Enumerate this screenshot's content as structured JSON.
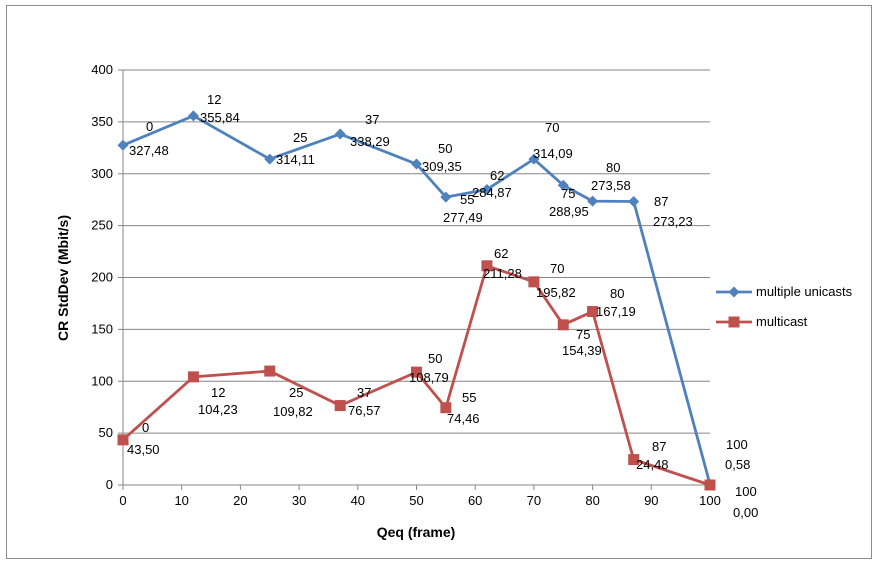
{
  "chart_data": {
    "type": "line",
    "title": "",
    "xlabel": "Qeq (frame)",
    "ylabel": "CR StdDev (Mbit/s)",
    "xlim": [
      0,
      100
    ],
    "ylim": [
      0,
      400
    ],
    "xticks": [
      "0",
      "10",
      "20",
      "30",
      "40",
      "50",
      "60",
      "70",
      "80",
      "90",
      "100"
    ],
    "yticks": [
      "0",
      "50",
      "100",
      "150",
      "200",
      "250",
      "300",
      "350",
      "400"
    ],
    "grid": "horizontal",
    "legend_position": "right",
    "series": [
      {
        "name": "multiple unicasts",
        "color": "#4f81bd",
        "marker": "diamond",
        "points": [
          {
            "x": 0,
            "y": 327.48,
            "label_x": "0",
            "label_y": "327,48"
          },
          {
            "x": 12,
            "y": 355.84,
            "label_x": "12",
            "label_y": "355,84"
          },
          {
            "x": 25,
            "y": 314.11,
            "label_x": "25",
            "label_y": "314,11"
          },
          {
            "x": 37,
            "y": 338.29,
            "label_x": "37",
            "label_y": "338,29"
          },
          {
            "x": 50,
            "y": 309.35,
            "label_x": "50",
            "label_y": "309,35"
          },
          {
            "x": 55,
            "y": 277.49,
            "label_x": "55",
            "label_y": "277,49"
          },
          {
            "x": 62,
            "y": 284.87,
            "label_x": "62",
            "label_y": "284,87"
          },
          {
            "x": 70,
            "y": 314.09,
            "label_x": "70",
            "label_y": "314,09"
          },
          {
            "x": 75,
            "y": 288.95,
            "label_x": "75",
            "label_y": "288,95"
          },
          {
            "x": 80,
            "y": 273.58,
            "label_x": "80",
            "label_y": "273,58"
          },
          {
            "x": 87,
            "y": 273.23,
            "label_x": "87",
            "label_y": "273,23"
          },
          {
            "x": 100,
            "y": 0.58,
            "label_x": "100",
            "label_y": "0,58"
          }
        ]
      },
      {
        "name": "multicast",
        "color": "#c0504d",
        "marker": "square",
        "points": [
          {
            "x": 0,
            "y": 43.5,
            "label_x": "0",
            "label_y": "43,50"
          },
          {
            "x": 12,
            "y": 104.23,
            "label_x": "12",
            "label_y": "104,23"
          },
          {
            "x": 25,
            "y": 109.82,
            "label_x": "25",
            "label_y": "109,82"
          },
          {
            "x": 37,
            "y": 76.57,
            "label_x": "37",
            "label_y": "76,57"
          },
          {
            "x": 50,
            "y": 108.79,
            "label_x": "50",
            "label_y": "108,79"
          },
          {
            "x": 55,
            "y": 74.46,
            "label_x": "55",
            "label_y": "74,46"
          },
          {
            "x": 62,
            "y": 211.28,
            "label_x": "62",
            "label_y": "211,28"
          },
          {
            "x": 70,
            "y": 195.82,
            "label_x": "70",
            "label_y": "195,82"
          },
          {
            "x": 75,
            "y": 154.39,
            "label_x": "75",
            "label_y": "154,39"
          },
          {
            "x": 80,
            "y": 167.19,
            "label_x": "80",
            "label_y": "167,19"
          },
          {
            "x": 87,
            "y": 24.48,
            "label_x": "87",
            "label_y": "24,48"
          },
          {
            "x": 100,
            "y": 0.0,
            "label_x": "100",
            "label_y": "0,00"
          }
        ]
      }
    ]
  }
}
